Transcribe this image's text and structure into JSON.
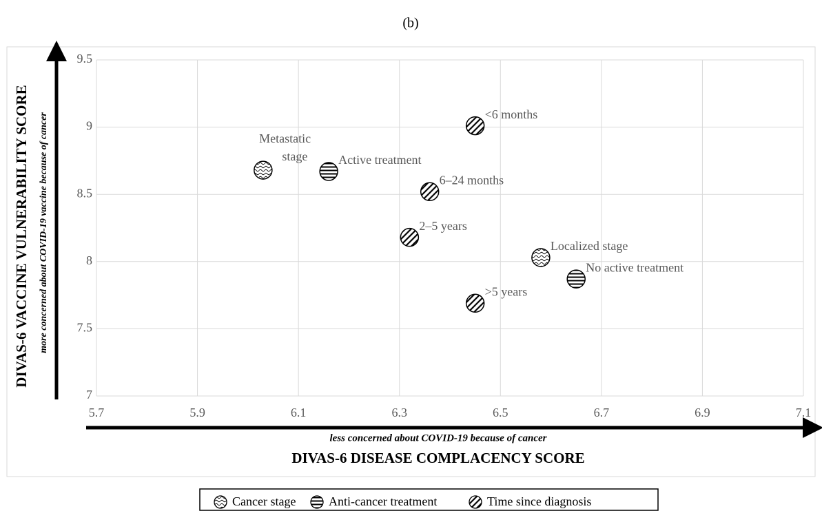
{
  "chart_data": {
    "type": "scatter",
    "title": "(b)",
    "xlabel": "DIVAS-6 DISEASE COMPLACENCY SCORE",
    "xsublabel": "less concerned about COVID-19 because of cancer",
    "ylabel": "DIVAS-6 VACCINE VULNERABILITY SCORE",
    "ysublabel": "more concerned about COVID-19 vaccine because of cancer",
    "xlim": [
      5.7,
      7.1
    ],
    "ylim": [
      7,
      9.5
    ],
    "xticks": [
      5.7,
      5.9,
      6.1,
      6.3,
      6.5,
      6.7,
      6.9,
      7.1
    ],
    "yticks": [
      7,
      7.5,
      8,
      8.5,
      9,
      9.5
    ],
    "grid": true,
    "legend": "bottom",
    "series": [
      {
        "name": "Cancer stage",
        "pattern": "wavy",
        "labels": [
          "Metastatic stage",
          "Localized stage"
        ],
        "x": [
          6.03,
          6.58
        ],
        "values": [
          8.68,
          8.03
        ]
      },
      {
        "name": "Anti-cancer treatment",
        "pattern": "horizontal",
        "labels": [
          "Active treatment",
          "No active treatment"
        ],
        "x": [
          6.16,
          6.65
        ],
        "values": [
          8.67,
          7.87
        ]
      },
      {
        "name": "Time since diagnosis",
        "pattern": "diagonal",
        "labels": [
          "<6 months",
          "6–24 months",
          "2–5 years",
          ">5 years"
        ],
        "x": [
          6.45,
          6.36,
          6.32,
          6.45
        ],
        "values": [
          9.01,
          8.52,
          8.18,
          7.69
        ]
      }
    ]
  }
}
